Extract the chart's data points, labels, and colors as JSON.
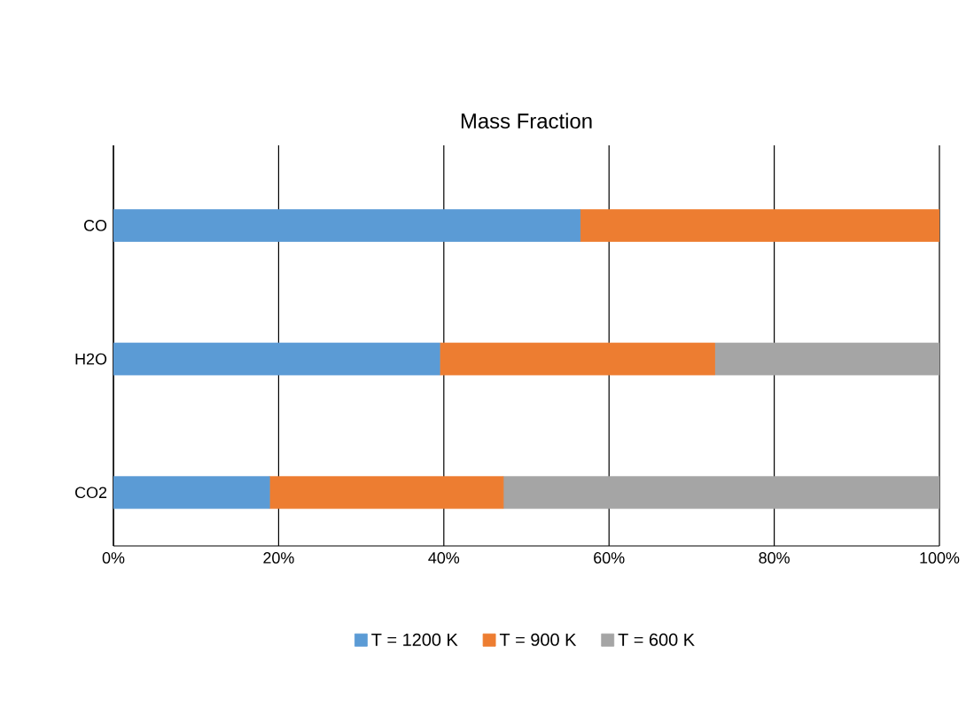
{
  "chart_data": {
    "type": "bar",
    "orientation": "horizontal",
    "stacked": true,
    "title": "Mass Fraction",
    "categories": [
      "CO",
      "H2O",
      "CO2"
    ],
    "series": [
      {
        "name": "T = 1200 K",
        "color": "#5b9bd5",
        "values": [
          56.5,
          39.5,
          18.9
        ]
      },
      {
        "name": "T = 900 K",
        "color": "#ed7d31",
        "values": [
          43.5,
          33.3,
          28.3
        ]
      },
      {
        "name": "T = 600 K",
        "color": "#a5a5a5",
        "values": [
          0,
          27.2,
          52.8
        ]
      }
    ],
    "xlim": [
      0,
      100
    ],
    "xticks": [
      {
        "value": 0,
        "label": "0%"
      },
      {
        "value": 20,
        "label": "20%"
      },
      {
        "value": 40,
        "label": "40%"
      },
      {
        "value": 60,
        "label": "60%"
      },
      {
        "value": 80,
        "label": "80%"
      },
      {
        "value": 100,
        "label": "100%"
      }
    ],
    "grid": "x",
    "legend": "bottom"
  }
}
